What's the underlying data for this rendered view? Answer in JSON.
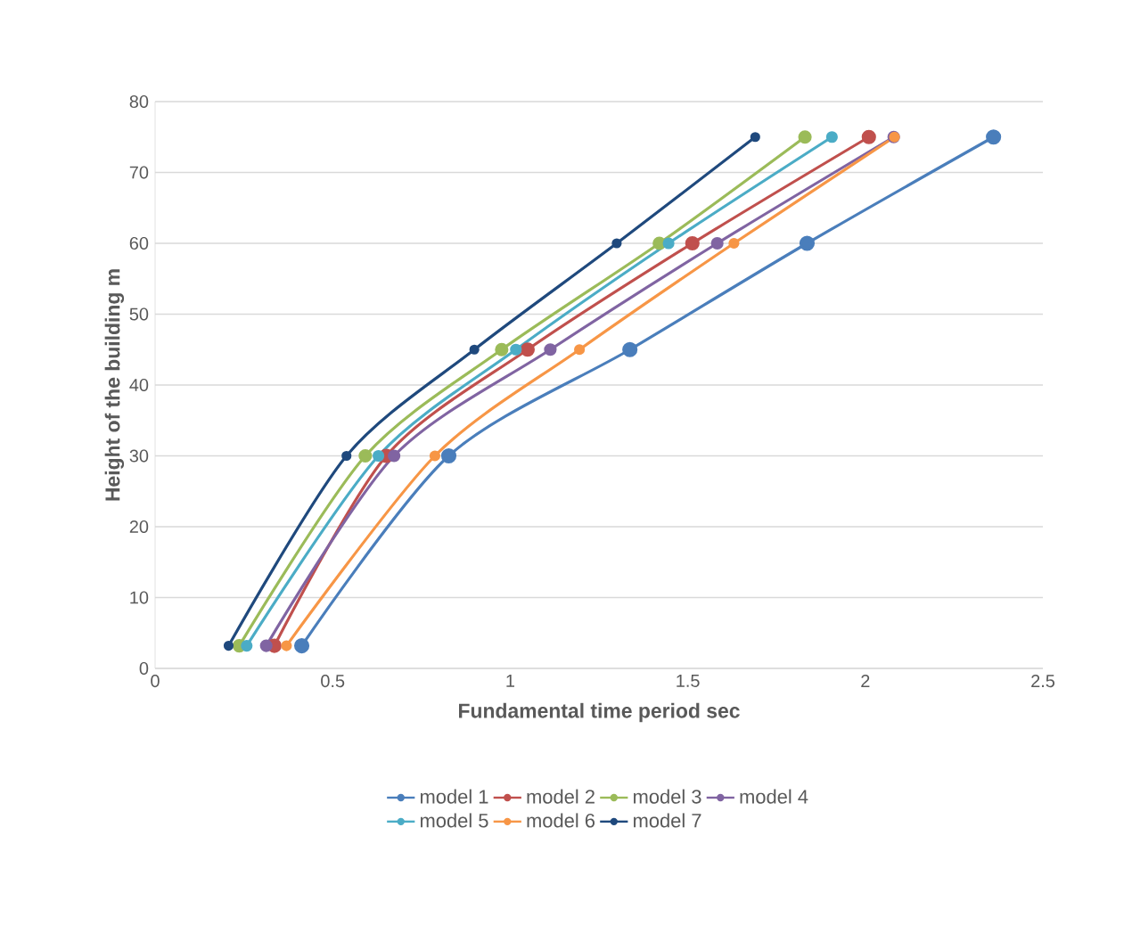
{
  "chart_data": {
    "type": "line",
    "xlabel": "Fundamental time period  sec",
    "ylabel": "Height of the building  m",
    "xlim": [
      0,
      2.5
    ],
    "xticks": [
      0,
      0.5,
      1,
      1.5,
      2,
      2.5
    ],
    "ylim": [
      0,
      80
    ],
    "yticks": [
      0,
      10,
      20,
      30,
      40,
      50,
      60,
      70,
      80
    ],
    "grid": "y",
    "legend": "bottom",
    "marker": "circle",
    "line_style": "solid",
    "series": [
      {
        "name": "model 1",
        "color": "#4a7ebb",
        "x": [
          0.413,
          0.827,
          1.337,
          1.836,
          2.361
        ],
        "values": [
          3.2,
          30,
          45,
          60,
          75
        ]
      },
      {
        "name": "model 2",
        "color": "#c0504d",
        "x": [
          0.336,
          0.651,
          1.049,
          1.513,
          2.01
        ],
        "values": [
          3.2,
          30,
          45,
          60,
          75
        ]
      },
      {
        "name": "model 3",
        "color": "#9bbb59",
        "x": [
          0.237,
          0.592,
          0.976,
          1.42,
          1.83
        ],
        "values": [
          3.2,
          30,
          45,
          60,
          75
        ]
      },
      {
        "name": "model 4",
        "color": "#8064a2",
        "x": [
          0.313,
          0.673,
          1.113,
          1.583,
          2.08
        ],
        "values": [
          3.2,
          30,
          45,
          60,
          75
        ]
      },
      {
        "name": "model 5",
        "color": "#4bacc6",
        "x": [
          0.258,
          0.629,
          1.016,
          1.446,
          1.906
        ],
        "values": [
          3.2,
          30,
          45,
          60,
          75
        ]
      },
      {
        "name": "model 6",
        "color": "#f79646",
        "x": [
          0.37,
          0.788,
          1.195,
          1.63,
          2.082
        ],
        "values": [
          3.2,
          30,
          45,
          60,
          75
        ]
      },
      {
        "name": "model 7",
        "color": "#1f497d",
        "x": [
          0.207,
          0.539,
          0.899,
          1.3,
          1.69
        ],
        "values": [
          3.2,
          30,
          45,
          60,
          75
        ]
      }
    ]
  }
}
